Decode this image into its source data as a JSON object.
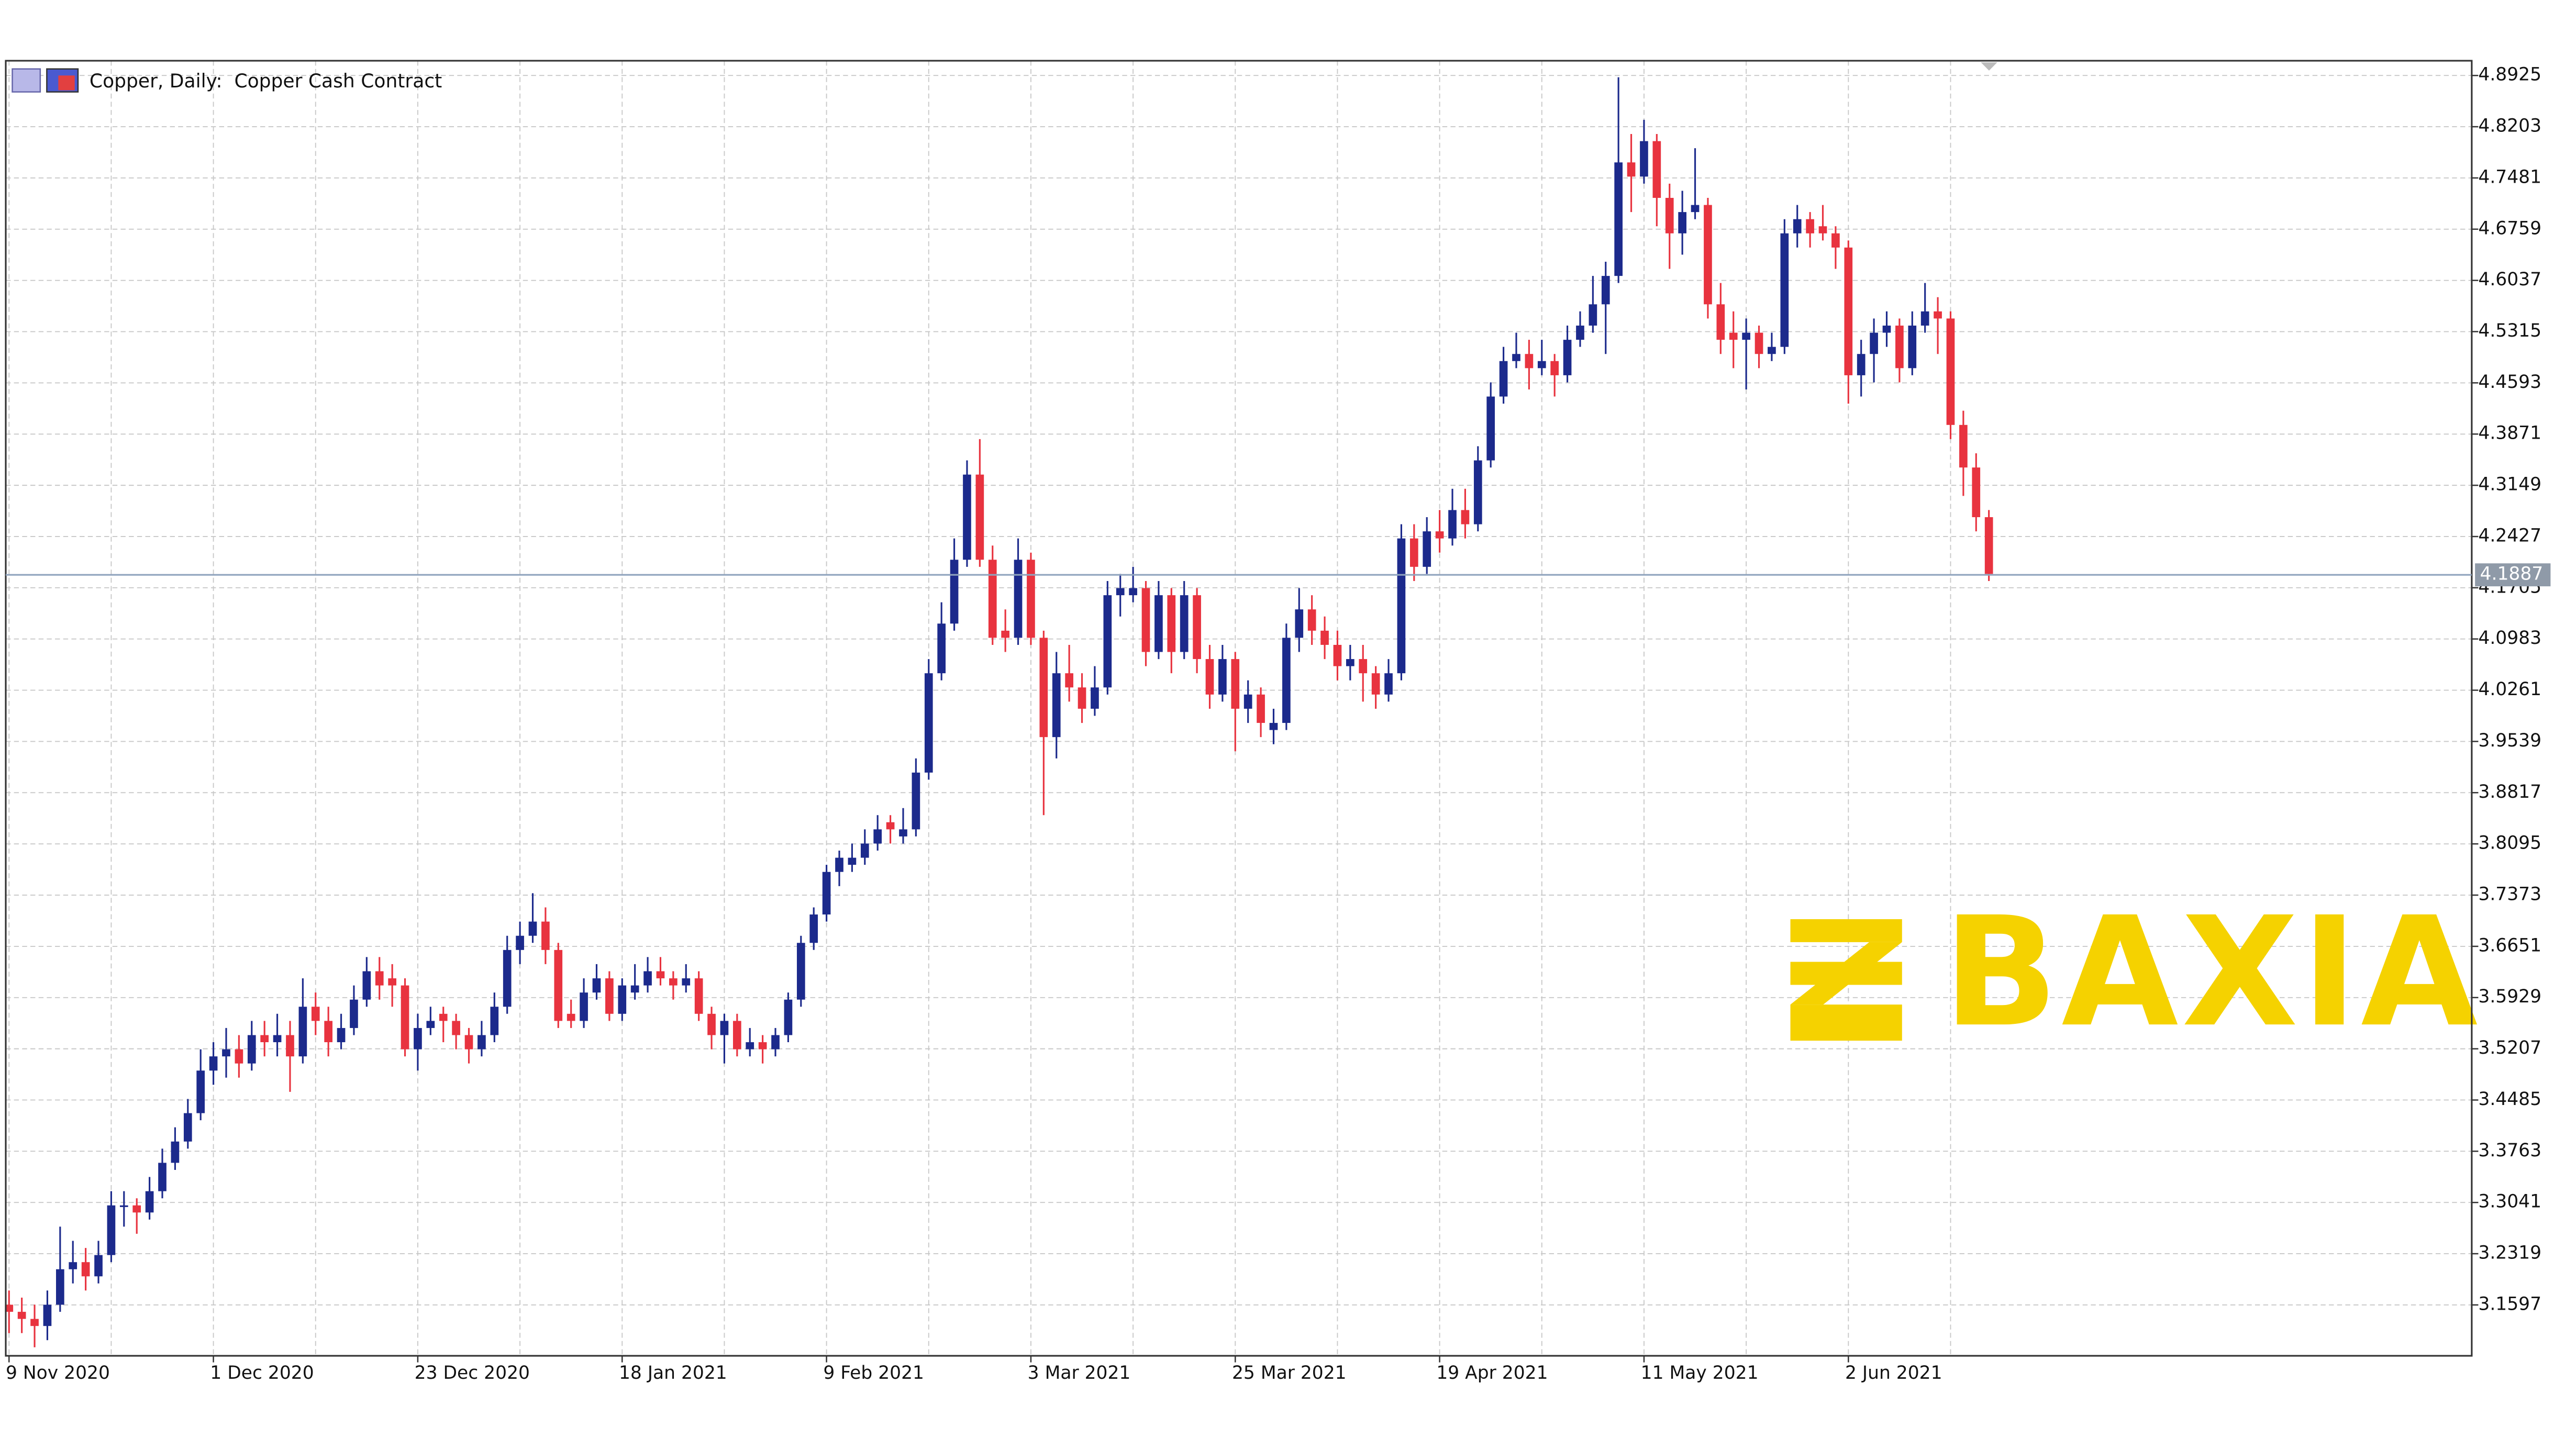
{
  "chart_data": {
    "type": "candlestick",
    "title": "Copper, Daily:  Copper Cash Contract",
    "watermark": "BAXIA",
    "up_color": "#1c2a8c",
    "down_color": "#e8333f",
    "current_price": 4.1887,
    "grid": true,
    "ylim": [
      3.088,
      4.9133
    ],
    "yticks": [
      4.8925,
      4.8203,
      4.7481,
      4.6759,
      4.6037,
      4.5315,
      4.4593,
      4.3871,
      4.3149,
      4.2427,
      4.1705,
      4.0983,
      4.0261,
      3.9539,
      3.8817,
      3.8095,
      3.7373,
      3.6651,
      3.5929,
      3.5207,
      3.4485,
      3.3763,
      3.3041,
      3.2319,
      3.1597
    ],
    "categories": [
      "9 Nov 2020",
      null,
      null,
      null,
      null,
      null,
      null,
      null,
      null,
      null,
      null,
      null,
      null,
      null,
      null,
      null,
      "1 Dec 2020",
      null,
      null,
      null,
      null,
      null,
      null,
      null,
      null,
      null,
      null,
      null,
      null,
      null,
      null,
      null,
      "23 Dec 2020",
      null,
      null,
      null,
      null,
      null,
      null,
      null,
      null,
      null,
      null,
      null,
      null,
      null,
      null,
      null,
      "18 Jan 2021",
      null,
      null,
      null,
      null,
      null,
      null,
      null,
      null,
      null,
      null,
      null,
      null,
      null,
      null,
      null,
      "9 Feb 2021",
      null,
      null,
      null,
      null,
      null,
      null,
      null,
      null,
      null,
      null,
      null,
      null,
      null,
      null,
      null,
      "3 Mar 2021",
      null,
      null,
      null,
      null,
      null,
      null,
      null,
      null,
      null,
      null,
      null,
      null,
      null,
      null,
      null,
      "25 Mar 2021",
      null,
      null,
      null,
      null,
      null,
      null,
      null,
      null,
      null,
      null,
      null,
      null,
      null,
      null,
      null,
      "19 Apr 2021",
      null,
      null,
      null,
      null,
      null,
      null,
      null,
      null,
      null,
      null,
      null,
      null,
      null,
      null,
      null,
      "11 May 2021",
      null,
      null,
      null,
      null,
      null,
      null,
      null,
      null,
      null,
      null,
      null,
      null,
      null,
      null,
      null,
      "2 Jun 2021",
      null,
      null,
      null,
      null,
      null,
      null,
      null,
      null,
      null,
      null,
      null
    ],
    "ohlc": [
      [
        3.16,
        3.18,
        3.12,
        3.15
      ],
      [
        3.15,
        3.17,
        3.12,
        3.14
      ],
      [
        3.14,
        3.16,
        3.1,
        3.13
      ],
      [
        3.13,
        3.18,
        3.11,
        3.16
      ],
      [
        3.16,
        3.27,
        3.15,
        3.21
      ],
      [
        3.21,
        3.25,
        3.19,
        3.22
      ],
      [
        3.22,
        3.24,
        3.18,
        3.2
      ],
      [
        3.2,
        3.25,
        3.19,
        3.23
      ],
      [
        3.23,
        3.32,
        3.22,
        3.3
      ],
      [
        3.3,
        3.32,
        3.27,
        3.3
      ],
      [
        3.3,
        3.31,
        3.26,
        3.29
      ],
      [
        3.29,
        3.34,
        3.28,
        3.32
      ],
      [
        3.32,
        3.38,
        3.31,
        3.36
      ],
      [
        3.36,
        3.41,
        3.35,
        3.39
      ],
      [
        3.39,
        3.45,
        3.38,
        3.43
      ],
      [
        3.43,
        3.52,
        3.42,
        3.49
      ],
      [
        3.49,
        3.53,
        3.47,
        3.51
      ],
      [
        3.51,
        3.55,
        3.48,
        3.52
      ],
      [
        3.52,
        3.54,
        3.48,
        3.5
      ],
      [
        3.5,
        3.56,
        3.49,
        3.54
      ],
      [
        3.54,
        3.56,
        3.51,
        3.53
      ],
      [
        3.53,
        3.57,
        3.51,
        3.54
      ],
      [
        3.54,
        3.56,
        3.46,
        3.51
      ],
      [
        3.51,
        3.62,
        3.5,
        3.58
      ],
      [
        3.58,
        3.6,
        3.54,
        3.56
      ],
      [
        3.56,
        3.58,
        3.51,
        3.53
      ],
      [
        3.53,
        3.57,
        3.52,
        3.55
      ],
      [
        3.55,
        3.61,
        3.54,
        3.59
      ],
      [
        3.59,
        3.65,
        3.58,
        3.63
      ],
      [
        3.63,
        3.65,
        3.59,
        3.61
      ],
      [
        3.62,
        3.64,
        3.58,
        3.61
      ],
      [
        3.61,
        3.62,
        3.51,
        3.52
      ],
      [
        3.52,
        3.57,
        3.49,
        3.55
      ],
      [
        3.55,
        3.58,
        3.54,
        3.56
      ],
      [
        3.57,
        3.58,
        3.53,
        3.56
      ],
      [
        3.56,
        3.57,
        3.52,
        3.54
      ],
      [
        3.54,
        3.55,
        3.5,
        3.52
      ],
      [
        3.52,
        3.56,
        3.51,
        3.54
      ],
      [
        3.54,
        3.6,
        3.53,
        3.58
      ],
      [
        3.58,
        3.68,
        3.57,
        3.66
      ],
      [
        3.66,
        3.7,
        3.64,
        3.68
      ],
      [
        3.68,
        3.74,
        3.67,
        3.7
      ],
      [
        3.7,
        3.72,
        3.64,
        3.66
      ],
      [
        3.66,
        3.67,
        3.55,
        3.56
      ],
      [
        3.57,
        3.59,
        3.55,
        3.56
      ],
      [
        3.56,
        3.62,
        3.55,
        3.6
      ],
      [
        3.6,
        3.64,
        3.59,
        3.62
      ],
      [
        3.62,
        3.63,
        3.56,
        3.57
      ],
      [
        3.57,
        3.62,
        3.56,
        3.61
      ],
      [
        3.6,
        3.64,
        3.59,
        3.61
      ],
      [
        3.61,
        3.65,
        3.6,
        3.63
      ],
      [
        3.63,
        3.65,
        3.61,
        3.62
      ],
      [
        3.62,
        3.63,
        3.59,
        3.61
      ],
      [
        3.61,
        3.64,
        3.6,
        3.62
      ],
      [
        3.62,
        3.63,
        3.56,
        3.57
      ],
      [
        3.57,
        3.58,
        3.52,
        3.54
      ],
      [
        3.54,
        3.57,
        3.5,
        3.56
      ],
      [
        3.56,
        3.57,
        3.51,
        3.52
      ],
      [
        3.52,
        3.55,
        3.51,
        3.53
      ],
      [
        3.53,
        3.54,
        3.5,
        3.52
      ],
      [
        3.52,
        3.55,
        3.51,
        3.54
      ],
      [
        3.54,
        3.6,
        3.53,
        3.59
      ],
      [
        3.59,
        3.68,
        3.58,
        3.67
      ],
      [
        3.67,
        3.72,
        3.66,
        3.71
      ],
      [
        3.71,
        3.78,
        3.7,
        3.77
      ],
      [
        3.77,
        3.8,
        3.75,
        3.79
      ],
      [
        3.78,
        3.81,
        3.77,
        3.79
      ],
      [
        3.79,
        3.83,
        3.78,
        3.81
      ],
      [
        3.81,
        3.85,
        3.8,
        3.83
      ],
      [
        3.84,
        3.85,
        3.81,
        3.83
      ],
      [
        3.82,
        3.86,
        3.81,
        3.83
      ],
      [
        3.83,
        3.93,
        3.82,
        3.91
      ],
      [
        3.91,
        4.07,
        3.9,
        4.05
      ],
      [
        4.05,
        4.15,
        4.04,
        4.12
      ],
      [
        4.12,
        4.24,
        4.11,
        4.21
      ],
      [
        4.21,
        4.35,
        4.2,
        4.33
      ],
      [
        4.33,
        4.38,
        4.2,
        4.21
      ],
      [
        4.21,
        4.23,
        4.09,
        4.1
      ],
      [
        4.11,
        4.14,
        4.08,
        4.1
      ],
      [
        4.1,
        4.24,
        4.09,
        4.21
      ],
      [
        4.21,
        4.22,
        4.09,
        4.1
      ],
      [
        4.1,
        4.11,
        3.85,
        3.96
      ],
      [
        3.96,
        4.08,
        3.93,
        4.05
      ],
      [
        4.05,
        4.09,
        4.01,
        4.03
      ],
      [
        4.03,
        4.05,
        3.98,
        4.0
      ],
      [
        4.0,
        4.06,
        3.99,
        4.03
      ],
      [
        4.03,
        4.18,
        4.02,
        4.16
      ],
      [
        4.16,
        4.19,
        4.13,
        4.17
      ],
      [
        4.16,
        4.2,
        4.15,
        4.17
      ],
      [
        4.17,
        4.18,
        4.06,
        4.08
      ],
      [
        4.08,
        4.18,
        4.07,
        4.16
      ],
      [
        4.16,
        4.17,
        4.05,
        4.08
      ],
      [
        4.08,
        4.18,
        4.07,
        4.16
      ],
      [
        4.16,
        4.17,
        4.05,
        4.07
      ],
      [
        4.07,
        4.09,
        4.0,
        4.02
      ],
      [
        4.02,
        4.09,
        4.01,
        4.07
      ],
      [
        4.07,
        4.08,
        3.94,
        4.0
      ],
      [
        4.0,
        4.04,
        3.98,
        4.02
      ],
      [
        4.02,
        4.03,
        3.96,
        3.98
      ],
      [
        3.97,
        4.0,
        3.95,
        3.98
      ],
      [
        3.98,
        4.12,
        3.97,
        4.1
      ],
      [
        4.1,
        4.17,
        4.08,
        4.14
      ],
      [
        4.14,
        4.16,
        4.09,
        4.11
      ],
      [
        4.11,
        4.13,
        4.07,
        4.09
      ],
      [
        4.09,
        4.11,
        4.04,
        4.06
      ],
      [
        4.06,
        4.09,
        4.04,
        4.07
      ],
      [
        4.07,
        4.09,
        4.01,
        4.05
      ],
      [
        4.05,
        4.06,
        4.0,
        4.02
      ],
      [
        4.02,
        4.07,
        4.01,
        4.05
      ],
      [
        4.05,
        4.26,
        4.04,
        4.24
      ],
      [
        4.24,
        4.26,
        4.18,
        4.2
      ],
      [
        4.2,
        4.27,
        4.19,
        4.25
      ],
      [
        4.25,
        4.28,
        4.22,
        4.24
      ],
      [
        4.24,
        4.31,
        4.23,
        4.28
      ],
      [
        4.28,
        4.31,
        4.24,
        4.26
      ],
      [
        4.26,
        4.37,
        4.25,
        4.35
      ],
      [
        4.35,
        4.46,
        4.34,
        4.44
      ],
      [
        4.44,
        4.51,
        4.43,
        4.49
      ],
      [
        4.49,
        4.53,
        4.48,
        4.5
      ],
      [
        4.5,
        4.52,
        4.45,
        4.48
      ],
      [
        4.48,
        4.52,
        4.47,
        4.49
      ],
      [
        4.49,
        4.5,
        4.44,
        4.47
      ],
      [
        4.47,
        4.54,
        4.46,
        4.52
      ],
      [
        4.52,
        4.56,
        4.51,
        4.54
      ],
      [
        4.54,
        4.61,
        4.53,
        4.57
      ],
      [
        4.57,
        4.63,
        4.5,
        4.61
      ],
      [
        4.61,
        4.89,
        4.6,
        4.77
      ],
      [
        4.77,
        4.81,
        4.7,
        4.75
      ],
      [
        4.75,
        4.83,
        4.74,
        4.8
      ],
      [
        4.8,
        4.81,
        4.68,
        4.72
      ],
      [
        4.72,
        4.74,
        4.62,
        4.67
      ],
      [
        4.67,
        4.73,
        4.64,
        4.7
      ],
      [
        4.7,
        4.79,
        4.69,
        4.71
      ],
      [
        4.71,
        4.72,
        4.55,
        4.57
      ],
      [
        4.57,
        4.6,
        4.5,
        4.52
      ],
      [
        4.53,
        4.56,
        4.48,
        4.52
      ],
      [
        4.52,
        4.55,
        4.45,
        4.53
      ],
      [
        4.53,
        4.54,
        4.48,
        4.5
      ],
      [
        4.5,
        4.53,
        4.49,
        4.51
      ],
      [
        4.51,
        4.69,
        4.5,
        4.67
      ],
      [
        4.67,
        4.71,
        4.65,
        4.69
      ],
      [
        4.69,
        4.7,
        4.65,
        4.67
      ],
      [
        4.68,
        4.71,
        4.66,
        4.67
      ],
      [
        4.67,
        4.68,
        4.62,
        4.65
      ],
      [
        4.65,
        4.66,
        4.43,
        4.47
      ],
      [
        4.47,
        4.52,
        4.44,
        4.5
      ],
      [
        4.5,
        4.55,
        4.46,
        4.53
      ],
      [
        4.53,
        4.56,
        4.51,
        4.54
      ],
      [
        4.54,
        4.55,
        4.46,
        4.48
      ],
      [
        4.48,
        4.56,
        4.47,
        4.54
      ],
      [
        4.54,
        4.6,
        4.53,
        4.56
      ],
      [
        4.56,
        4.58,
        4.5,
        4.55
      ],
      [
        4.55,
        4.56,
        4.38,
        4.4
      ],
      [
        4.4,
        4.42,
        4.3,
        4.34
      ],
      [
        4.34,
        4.36,
        4.25,
        4.27
      ],
      [
        4.27,
        4.28,
        4.18,
        4.19
      ]
    ]
  }
}
